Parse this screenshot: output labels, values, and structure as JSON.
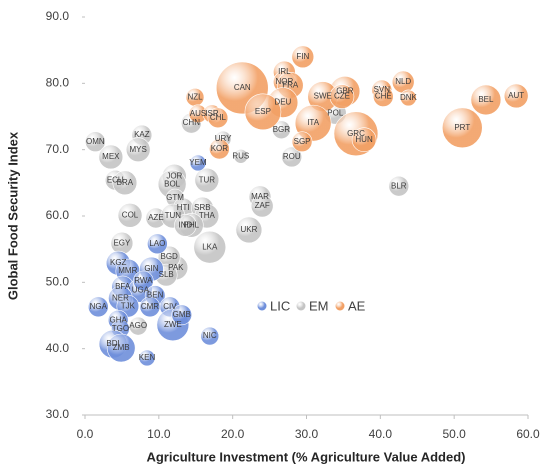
{
  "chart_data": {
    "type": "bubble",
    "x_label": "Agriculture Investment (% Agriculture Value Added)",
    "y_label": "Global Food Security Index",
    "xlim": [
      0,
      60
    ],
    "ylim": [
      30,
      90
    ],
    "xticks": [
      {
        "value": 0,
        "label": "0.0"
      },
      {
        "value": 10,
        "label": "10.0"
      },
      {
        "value": 20,
        "label": "20.0"
      },
      {
        "value": 30,
        "label": "30.0"
      },
      {
        "value": 40,
        "label": "40.0"
      },
      {
        "value": 50,
        "label": "50.0"
      },
      {
        "value": 60,
        "label": "60.0"
      }
    ],
    "yticks": [
      {
        "value": 30,
        "label": "30.0"
      },
      {
        "value": 40,
        "label": "40.0"
      },
      {
        "value": 50,
        "label": "50.0"
      },
      {
        "value": 60,
        "label": "60.0"
      },
      {
        "value": 70,
        "label": "70.0"
      },
      {
        "value": 80,
        "label": "80.0"
      },
      {
        "value": 90,
        "label": "90.0"
      }
    ],
    "legend": "center",
    "series": [
      {
        "name": "EM",
        "color": "#c4c4c4",
        "labels": [
          "OMN",
          "MEX",
          "KAZ",
          "MYS",
          "CHN",
          "URY",
          "RUS",
          "BGR",
          "POL",
          "ROU",
          "BLR",
          "ECU",
          "BRA",
          "JOR",
          "BOL",
          "TUR",
          "MAR",
          "ZAF",
          "COL",
          "AZE",
          "GTM",
          "HTI",
          "SRB",
          "TUN",
          "THA",
          "PHL",
          "IND",
          "UKR",
          "EGY",
          "LKA",
          "PAK",
          "BGD",
          "SLB",
          "AGO"
        ],
        "x": [
          1.4,
          3.5,
          7.7,
          7.2,
          14.4,
          18.7,
          21.1,
          26.6,
          33.9,
          28.0,
          42.5,
          4.1,
          5.4,
          12.1,
          11.8,
          16.5,
          23.7,
          24.0,
          6.1,
          9.6,
          12.2,
          13.3,
          15.9,
          11.9,
          16.5,
          14.4,
          13.6,
          22.2,
          5.0,
          16.9,
          12.3,
          11.4,
          11.0,
          7.2
        ],
        "values": [
          71.2,
          68.9,
          72.2,
          70.0,
          74.0,
          71.6,
          69.0,
          73.0,
          75.5,
          68.9,
          64.5,
          65.4,
          65.0,
          66.0,
          64.8,
          65.4,
          62.9,
          61.5,
          60.1,
          59.7,
          62.7,
          61.2,
          61.2,
          60.0,
          60.0,
          58.6,
          58.6,
          57.9,
          55.9,
          55.3,
          52.2,
          53.8,
          51.1,
          43.4
        ],
        "sizes": [
          10,
          12,
          10,
          12,
          10,
          8,
          7,
          9,
          11,
          10,
          10,
          10,
          12,
          12,
          14,
          12,
          11,
          11,
          12,
          10,
          9,
          10,
          11,
          12,
          12,
          12,
          11,
          13,
          11,
          16,
          12,
          11,
          11,
          9
        ]
      },
      {
        "name": "LIC",
        "color": "#6f8fdb",
        "labels": [
          "YEM",
          "KGZ",
          "MMR",
          "LAO",
          "GIN",
          "BFA",
          "UGA",
          "RWA",
          "NER",
          "TJK",
          "NGA",
          "BEN",
          "CIV",
          "CMR",
          "GHA",
          "TGO",
          "ZWE",
          "GMB",
          "NIC",
          "BDI",
          "ZMB",
          "KEN"
        ],
        "x": [
          15.3,
          4.5,
          5.8,
          9.8,
          9.0,
          5.1,
          7.5,
          7.9,
          4.8,
          5.8,
          1.8,
          9.5,
          11.5,
          8.8,
          4.5,
          4.8,
          11.9,
          13.1,
          16.9,
          3.8,
          4.9,
          8.4
        ],
        "values": [
          68.0,
          52.9,
          51.7,
          55.8,
          52.0,
          49.3,
          48.8,
          50.2,
          47.6,
          46.4,
          46.3,
          48.0,
          46.3,
          46.3,
          44.3,
          43.0,
          43.6,
          45.1,
          41.9,
          40.7,
          40.1,
          38.6
        ],
        "sizes": [
          8,
          12,
          12,
          10,
          12,
          11,
          12,
          10,
          12,
          11,
          10,
          10,
          10,
          10,
          10,
          9,
          16,
          10,
          9,
          14,
          14,
          8
        ]
      },
      {
        "name": "AE",
        "color": "#f2a065",
        "labels": [
          "FIN",
          "NZL",
          "CAN",
          "IRL",
          "NOR",
          "FRA",
          "GBR",
          "SWE",
          "CZE",
          "SVN",
          "CHE",
          "NLD",
          "DNK",
          "BEL",
          "AUT",
          "DEU",
          "ESP",
          "AUS",
          "ISR",
          "CHL",
          "ITA",
          "SGP",
          "GRC",
          "HUN",
          "PRT",
          "KOR"
        ],
        "x": [
          29.5,
          14.9,
          21.3,
          27.0,
          27.0,
          27.8,
          35.2,
          32.2,
          34.8,
          40.2,
          40.4,
          43.1,
          43.8,
          54.3,
          58.4,
          26.8,
          24.1,
          15.3,
          17.2,
          18.0,
          30.9,
          29.4,
          36.7,
          37.8,
          51.1,
          18.2
        ],
        "values": [
          84.0,
          77.9,
          79.3,
          81.7,
          80.2,
          79.7,
          78.8,
          78.0,
          78.0,
          79.0,
          78.0,
          80.2,
          77.8,
          77.5,
          78.1,
          77.1,
          75.7,
          75.4,
          75.4,
          74.8,
          74.0,
          71.2,
          72.4,
          71.5,
          73.3,
          70.1
        ],
        "sizes": [
          11,
          9,
          26,
          11,
          11,
          13,
          15,
          15,
          12,
          10,
          10,
          11,
          8,
          15,
          12,
          15,
          18,
          9,
          9,
          10,
          18,
          10,
          22,
          12,
          20,
          10
        ]
      }
    ]
  }
}
